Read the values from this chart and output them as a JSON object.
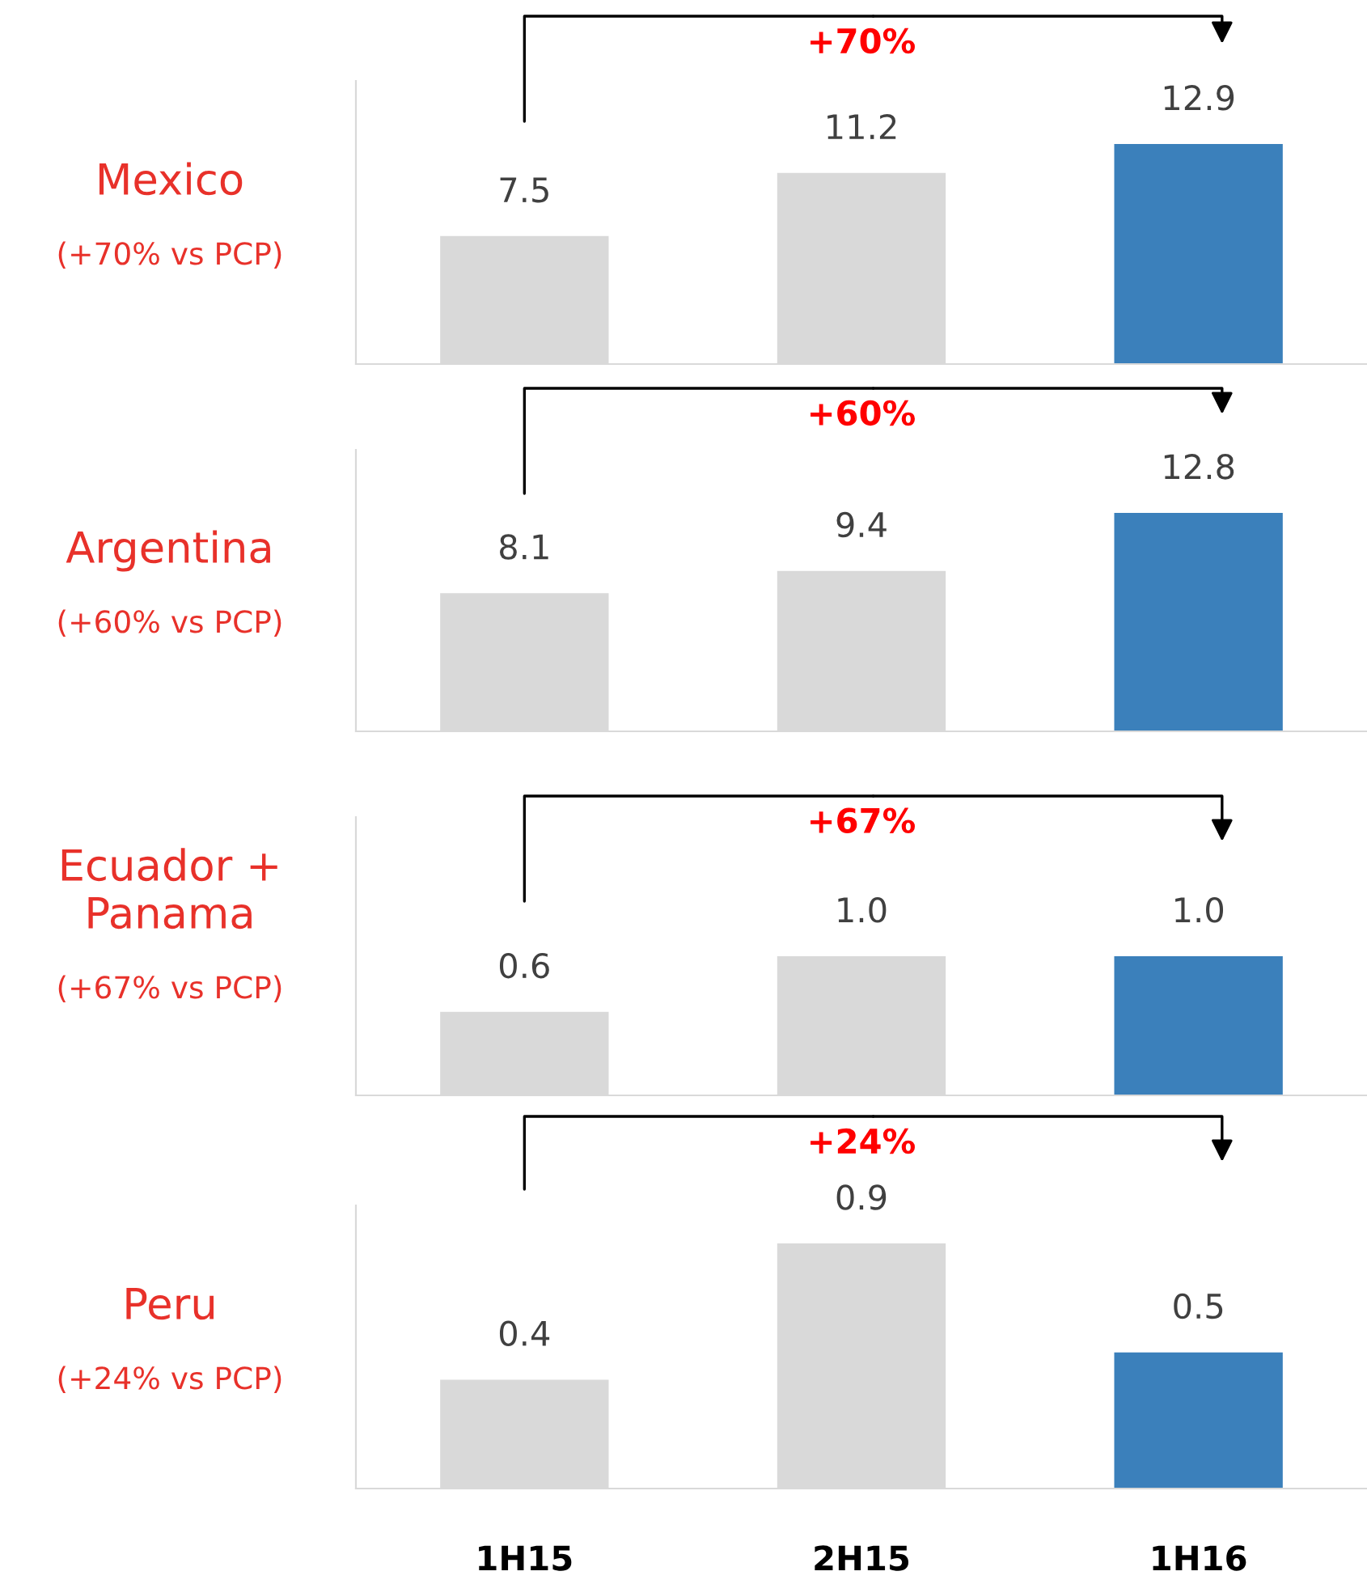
{
  "chart_data": [
    {
      "type": "bar",
      "title": "Mexico",
      "subtitle": "(+70% vs PCP)",
      "annotations": [
        "+70%"
      ],
      "categories": [
        null,
        null,
        null
      ],
      "values": [
        7.5,
        11.2,
        12.9
      ],
      "value_labels": [
        "7.5",
        "11.2",
        "12.9"
      ],
      "colors": [
        "#d9d9d9",
        "#d9d9d9",
        "#3b80bb"
      ],
      "ylim": [
        0,
        16.6
      ],
      "tick_labels": false,
      "grid": false,
      "legend": false
    },
    {
      "type": "bar",
      "title": "Argentina",
      "subtitle": "(+60% vs PCP)",
      "annotations": [
        "+60%"
      ],
      "categories": [
        null,
        null,
        null
      ],
      "values": [
        8.1,
        9.4,
        12.8
      ],
      "value_labels": [
        "8.1",
        "9.4",
        "12.8"
      ],
      "colors": [
        "#d9d9d9",
        "#d9d9d9",
        "#3b80bb"
      ],
      "ylim": [
        0,
        16.5
      ],
      "tick_labels": false,
      "grid": false,
      "legend": false
    },
    {
      "type": "bar",
      "title": "Ecuador +\nPanama",
      "subtitle": "(+67% vs PCP)",
      "annotations": [
        "+67%"
      ],
      "categories": [
        null,
        null,
        null
      ],
      "values": [
        0.6,
        1.0,
        1.0
      ],
      "value_labels": [
        "0.6",
        "1.0",
        "1.0"
      ],
      "colors": [
        "#d9d9d9",
        "#d9d9d9",
        "#3b80bb"
      ],
      "ylim": [
        0,
        2.0
      ],
      "tick_labels": false,
      "grid": false,
      "legend": false
    },
    {
      "type": "bar",
      "title": "Peru",
      "subtitle": "(+24% vs PCP)",
      "annotations": [
        "+24%"
      ],
      "categories": [
        "1H15",
        "2H15",
        "1H16"
      ],
      "values": [
        0.4,
        0.9,
        0.5
      ],
      "value_labels": [
        "0.4",
        "0.9",
        "0.5"
      ],
      "colors": [
        "#d9d9d9",
        "#d9d9d9",
        "#3b80bb"
      ],
      "ylim": [
        0,
        1.04
      ],
      "tick_labels": "x",
      "grid": false,
      "legend": false
    }
  ]
}
